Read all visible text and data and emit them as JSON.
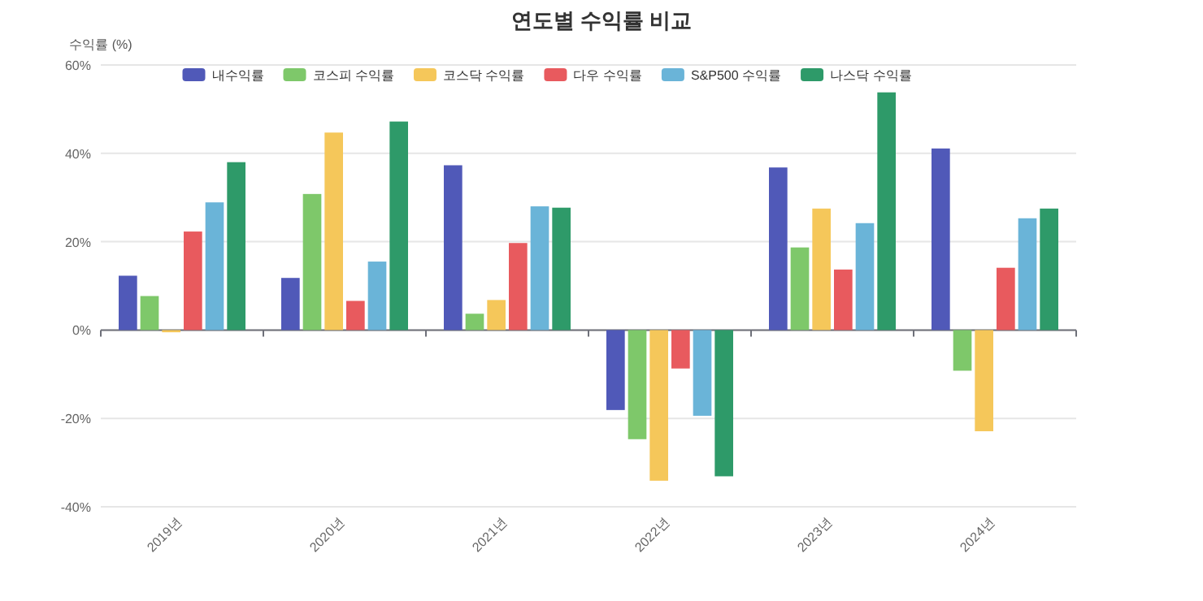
{
  "chart_data": {
    "type": "bar",
    "title": "연도별 수익률 비교",
    "ylabel": "수익률 (%)",
    "categories": [
      "2019년",
      "2020년",
      "2021년",
      "2022년",
      "2023년",
      "2024년"
    ],
    "series": [
      {
        "name": "내수익률",
        "color": "#5059b8",
        "values": [
          12.3,
          11.8,
          37.3,
          -18.1,
          36.8,
          41.1
        ]
      },
      {
        "name": "코스피 수익률",
        "color": "#7ec86a",
        "values": [
          7.7,
          30.8,
          3.7,
          -24.7,
          18.7,
          -9.2
        ]
      },
      {
        "name": "코스닥 수익률",
        "color": "#f5c75a",
        "values": [
          -0.5,
          44.7,
          6.8,
          -34.1,
          27.5,
          -22.9
        ]
      },
      {
        "name": "다우 수익률",
        "color": "#e85a5e",
        "values": [
          22.3,
          6.6,
          19.7,
          -8.7,
          13.7,
          14.1
        ]
      },
      {
        "name": "S&P500 수익률",
        "color": "#6ab4d8",
        "values": [
          28.9,
          15.5,
          28.0,
          -19.4,
          24.2,
          25.3
        ]
      },
      {
        "name": "나스닥 수익률",
        "color": "#2e9a69",
        "values": [
          38.0,
          47.2,
          27.7,
          -33.1,
          53.8,
          27.5
        ]
      }
    ],
    "ylim": [
      -40,
      60
    ],
    "yticks": [
      {
        "value": -40,
        "label": "-40%"
      },
      {
        "value": -20,
        "label": "-20%"
      },
      {
        "value": 0,
        "label": "0%"
      },
      {
        "value": 20,
        "label": "20%"
      },
      {
        "value": 40,
        "label": "40%"
      },
      {
        "value": 60,
        "label": "60%"
      }
    ],
    "grid": "y",
    "legend": "top"
  }
}
